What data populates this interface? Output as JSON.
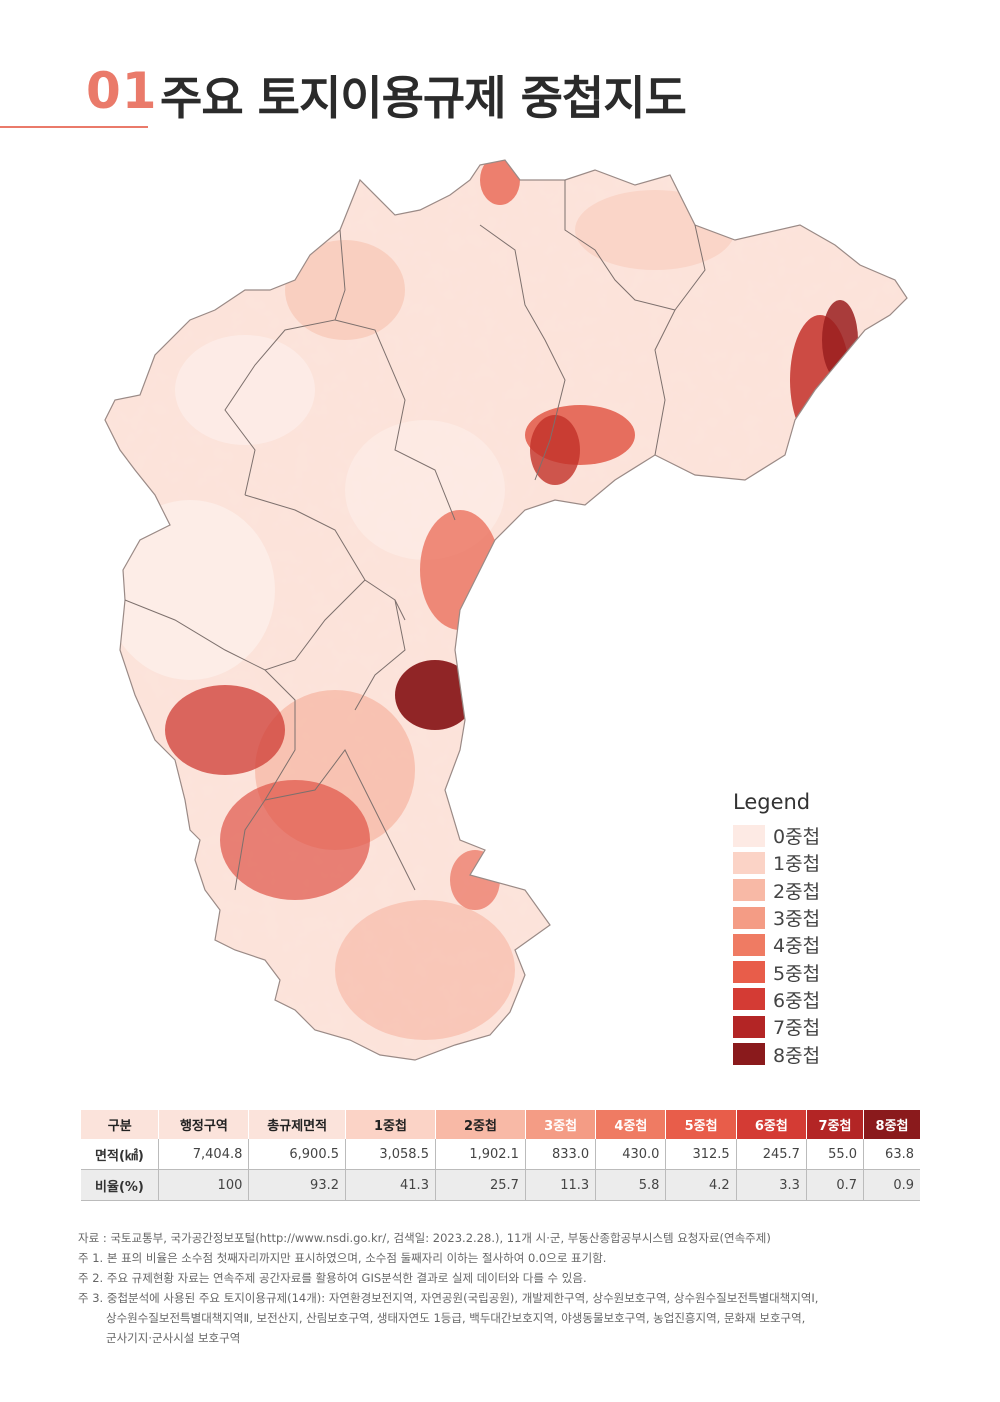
{
  "title": {
    "number": "01",
    "text": "주요 토지이용규제 중첩지도"
  },
  "legend": {
    "title": "Legend",
    "items": [
      {
        "label": "0중첩",
        "color": "#fdeae4"
      },
      {
        "label": "1중첩",
        "color": "#fbd3c6"
      },
      {
        "label": "2중첩",
        "color": "#f8b9a6"
      },
      {
        "label": "3중첩",
        "color": "#f49c85"
      },
      {
        "label": "4중첩",
        "color": "#ef7b63"
      },
      {
        "label": "5중첩",
        "color": "#e85d4a"
      },
      {
        "label": "6중첩",
        "color": "#d43b34"
      },
      {
        "label": "7중첩",
        "color": "#b32525"
      },
      {
        "label": "8중첩",
        "color": "#8a1a1c"
      }
    ]
  },
  "table": {
    "headers": [
      {
        "label": "구분",
        "color": "#fbe3db"
      },
      {
        "label": "행정구역",
        "color": "#fbe3db"
      },
      {
        "label": "총규제면적",
        "color": "#fbe3db"
      },
      {
        "label": "1중첩",
        "color": "#fbd3c6"
      },
      {
        "label": "2중첩",
        "color": "#f8b9a6"
      },
      {
        "label": "3중첩",
        "color": "#f49c85"
      },
      {
        "label": "4중첩",
        "color": "#ef7b63"
      },
      {
        "label": "5중첩",
        "color": "#e85d4a"
      },
      {
        "label": "6중첩",
        "color": "#d43b34"
      },
      {
        "label": "7중첩",
        "color": "#b32525"
      },
      {
        "label": "8중첩",
        "color": "#8a1a1c"
      }
    ],
    "rows": [
      {
        "label": "면적(㎢)",
        "values": [
          "7,404.8",
          "6,900.5",
          "3,058.5",
          "1,902.1",
          "833.0",
          "430.0",
          "312.5",
          "245.7",
          "55.0",
          "63.8"
        ]
      },
      {
        "label": "비율(%)",
        "values": [
          "100",
          "93.2",
          "41.3",
          "25.7",
          "11.3",
          "5.8",
          "4.2",
          "3.3",
          "0.7",
          "0.9"
        ]
      }
    ]
  },
  "notes": [
    "자료 : 국토교통부, 국가공간정보포털(http://www.nsdi.go.kr/, 검색일: 2023.2.28.), 11개 시·군, 부동산종합공부시스템 요청자료(연속주제)",
    "주 1. 본 표의 비율은 소수점 첫째자리까지만 표시하였으며, 소수점 둘째자리 이하는 절사하여 0.0으로 표기함.",
    "주 2. 주요 규제현황 자료는 연속주제 공간자료를 활용하여 GIS분석한 결과로 실제 데이터와 다를 수 있음.",
    "주 3. 중첩분석에 사용된 주요 토지이용규제(14개): 자연환경보전지역, 자연공원(국립공원), 개발제한구역, 상수원보호구역, 상수원수질보전특별대책지역Ⅰ,",
    "상수원수질보전특별대책지역Ⅱ, 보전산지, 산림보호구역, 생태자연도 1등급, 백두대간보호지역, 야생동물보호구역, 농업진흥지역, 문화재 보호구역,",
    "군사기지·군사시설 보호구역"
  ]
}
